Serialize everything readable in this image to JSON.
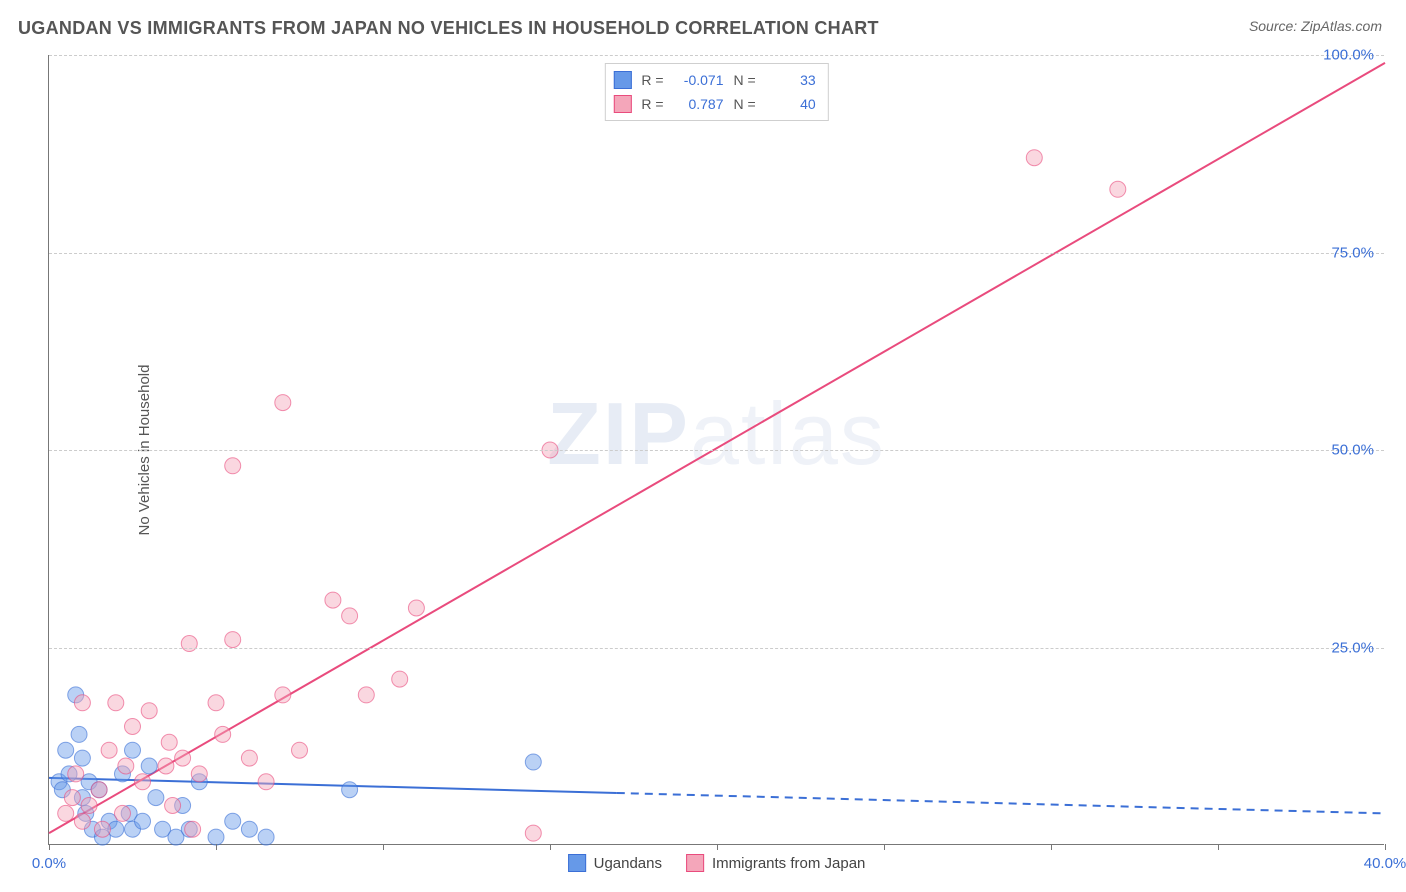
{
  "title": "UGANDAN VS IMMIGRANTS FROM JAPAN NO VEHICLES IN HOUSEHOLD CORRELATION CHART",
  "source": "Source: ZipAtlas.com",
  "ylabel": "No Vehicles in Household",
  "watermark_a": "ZIP",
  "watermark_b": "atlas",
  "chart": {
    "type": "scatter",
    "xlim": [
      0,
      40
    ],
    "ylim": [
      0,
      100
    ],
    "ytick_step": 25,
    "ytick_labels": [
      "25.0%",
      "50.0%",
      "75.0%",
      "100.0%"
    ],
    "xtick_positions": [
      0,
      5,
      10,
      15,
      20,
      25,
      30,
      35,
      40
    ],
    "xtick_labels": {
      "0": "0.0%",
      "40": "40.0%"
    },
    "grid_color": "#cccccc",
    "axis_color": "#777777",
    "background_color": "#ffffff",
    "title_fontsize": 18,
    "label_fontsize": 15,
    "tick_label_color": "#3b6fd6",
    "marker_radius": 8,
    "marker_opacity": 0.45,
    "line_width": 2,
    "series": [
      {
        "key": "ugandans",
        "label": "Ugandans",
        "color": "#6699e8",
        "stroke": "#3b6fd6",
        "R": "-0.071",
        "N": "33",
        "trend": {
          "x1": 0,
          "y1": 8.5,
          "x2": 40,
          "y2": 4.0,
          "solid_until_x": 17
        },
        "points": [
          [
            0.3,
            8
          ],
          [
            0.4,
            7
          ],
          [
            0.5,
            12
          ],
          [
            0.6,
            9
          ],
          [
            0.8,
            19
          ],
          [
            0.9,
            14
          ],
          [
            1.0,
            6
          ],
          [
            1.0,
            11
          ],
          [
            1.1,
            4
          ],
          [
            1.2,
            8
          ],
          [
            1.3,
            2
          ],
          [
            1.5,
            7
          ],
          [
            1.6,
            1
          ],
          [
            1.8,
            3
          ],
          [
            2.0,
            2
          ],
          [
            2.2,
            9
          ],
          [
            2.4,
            4
          ],
          [
            2.5,
            12
          ],
          [
            2.5,
            2
          ],
          [
            2.8,
            3
          ],
          [
            3.0,
            10
          ],
          [
            3.2,
            6
          ],
          [
            3.4,
            2
          ],
          [
            3.8,
            1
          ],
          [
            4.0,
            5
          ],
          [
            4.2,
            2
          ],
          [
            4.5,
            8
          ],
          [
            5.0,
            1
          ],
          [
            5.5,
            3
          ],
          [
            6.0,
            2
          ],
          [
            6.5,
            1
          ],
          [
            9.0,
            7
          ],
          [
            14.5,
            10.5
          ]
        ]
      },
      {
        "key": "japan",
        "label": "Immigrants from Japan",
        "color": "#f4a6ba",
        "stroke": "#e94b7d",
        "R": "0.787",
        "N": "40",
        "trend": {
          "x1": 0,
          "y1": 1.5,
          "x2": 40,
          "y2": 99,
          "solid_until_x": 40
        },
        "points": [
          [
            0.5,
            4
          ],
          [
            0.7,
            6
          ],
          [
            0.8,
            9
          ],
          [
            1.0,
            3
          ],
          [
            1.0,
            18
          ],
          [
            1.2,
            5
          ],
          [
            1.5,
            7
          ],
          [
            1.6,
            2
          ],
          [
            1.8,
            12
          ],
          [
            2.0,
            18
          ],
          [
            2.2,
            4
          ],
          [
            2.3,
            10
          ],
          [
            2.5,
            15
          ],
          [
            2.8,
            8
          ],
          [
            3.0,
            17
          ],
          [
            3.5,
            10
          ],
          [
            3.6,
            13
          ],
          [
            3.7,
            5
          ],
          [
            4.0,
            11
          ],
          [
            4.2,
            25.5
          ],
          [
            4.3,
            2
          ],
          [
            4.5,
            9
          ],
          [
            5.0,
            18
          ],
          [
            5.2,
            14
          ],
          [
            5.5,
            26
          ],
          [
            5.5,
            48
          ],
          [
            6.0,
            11
          ],
          [
            6.5,
            8
          ],
          [
            7.0,
            56
          ],
          [
            7.0,
            19
          ],
          [
            7.5,
            12
          ],
          [
            8.5,
            31
          ],
          [
            9.0,
            29
          ],
          [
            9.5,
            19
          ],
          [
            10.5,
            21
          ],
          [
            11.0,
            30
          ],
          [
            15.0,
            50
          ],
          [
            14.5,
            1.5
          ],
          [
            29.5,
            87
          ],
          [
            32.0,
            83
          ]
        ]
      }
    ]
  },
  "stat_legend_labels": {
    "R": "R =",
    "N": "N ="
  }
}
